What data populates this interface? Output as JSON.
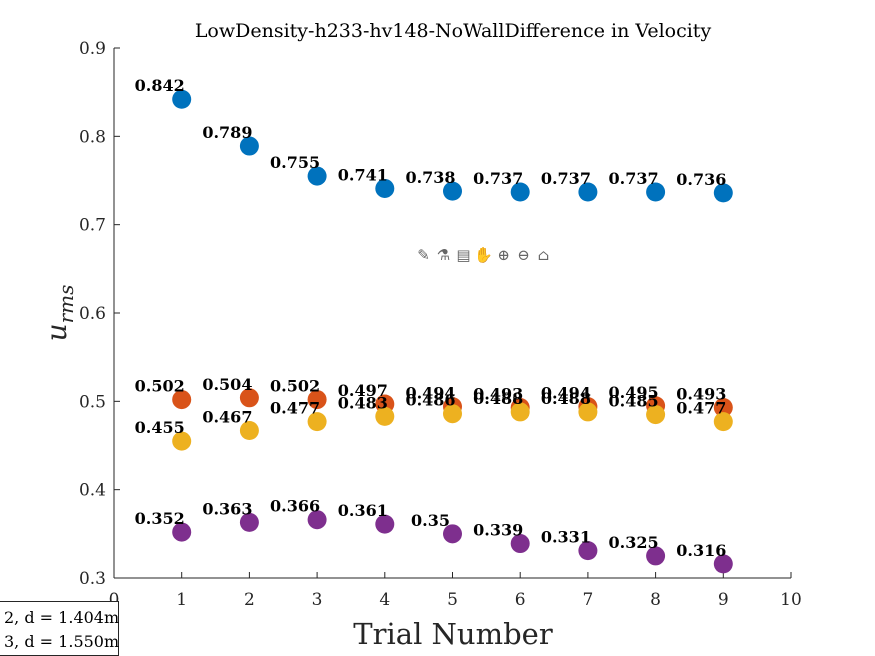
{
  "chart_data": {
    "type": "scatter",
    "title": "LowDensity-h233-hv148-NoWallDifference in Velocity",
    "xlabel": "Trial Number",
    "ylabel": "u_rms",
    "xlim": [
      0,
      10
    ],
    "ylim": [
      0.3,
      0.9
    ],
    "xticks": [
      "0",
      "1",
      "2",
      "3",
      "4",
      "5",
      "6",
      "7",
      "8",
      "9",
      "10"
    ],
    "yticks": [
      "0.3",
      "0.4",
      "0.5",
      "0.6",
      "0.7",
      "0.8",
      "0.9"
    ],
    "grid": false,
    "x": [
      1,
      2,
      3,
      4,
      5,
      6,
      7,
      8,
      9
    ],
    "series": [
      {
        "color": "#0072BD",
        "values": [
          0.842,
          0.789,
          0.755,
          0.741,
          0.738,
          0.737,
          0.737,
          0.737,
          0.736
        ],
        "labels": [
          "0.842",
          "0.789",
          "0.755",
          "0.741",
          "0.738",
          "0.737",
          "0.737",
          "0.737",
          "0.736"
        ]
      },
      {
        "color": "#D95319",
        "values": [
          0.502,
          0.504,
          0.502,
          0.497,
          0.494,
          0.493,
          0.494,
          0.495,
          0.493
        ],
        "labels": [
          "0.502",
          "0.504",
          "0.502",
          "0.497",
          "0.494",
          "0.493",
          "0.494",
          "0.495",
          "0.493"
        ]
      },
      {
        "color": "#EDB120",
        "values": [
          0.455,
          0.467,
          0.477,
          0.483,
          0.486,
          0.488,
          0.488,
          0.485,
          0.477
        ],
        "labels": [
          "0.455",
          "0.467",
          "0.477",
          "0.483",
          "0.486",
          "0.488",
          "0.488",
          "0.485",
          "0.477"
        ]
      },
      {
        "color": "#7E2F8E",
        "values": [
          0.352,
          0.363,
          0.366,
          0.361,
          0.35,
          0.339,
          0.331,
          0.325,
          0.316
        ],
        "labels": [
          "0.352",
          "0.363",
          "0.366",
          "0.361",
          "0.35",
          "0.339",
          "0.331",
          "0.325",
          "0.316"
        ]
      }
    ],
    "legend": {
      "placement": "bottom-left",
      "entries": [
        "2, d = 1.404m",
        "3, d = 1.550m"
      ]
    }
  },
  "toolbar": {
    "icons": [
      "export-icon",
      "brush-icon",
      "datatip-icon",
      "pan-icon",
      "zoom-in-icon",
      "zoom-out-icon",
      "home-icon"
    ],
    "glyphs": [
      "✎",
      "⚗",
      "▤",
      "✋",
      "⊕",
      "⊖",
      "⌂"
    ]
  }
}
